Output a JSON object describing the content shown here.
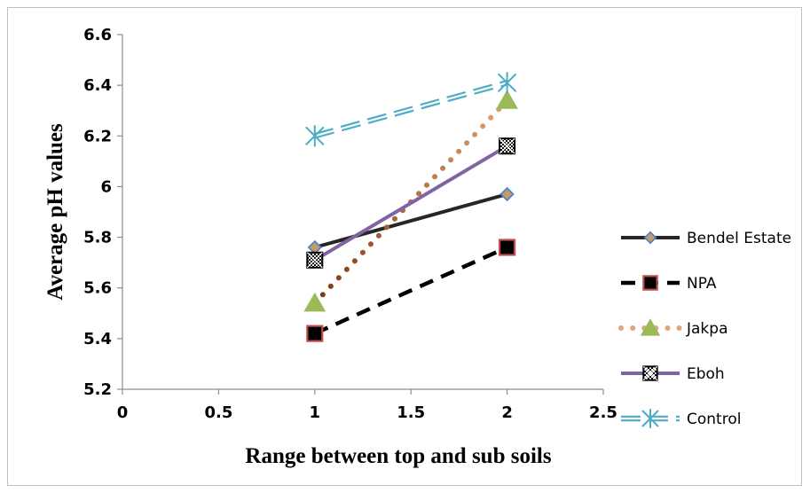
{
  "chart_data": {
    "type": "line",
    "title": "",
    "xlabel": "Range between top and sub soils",
    "ylabel": "Average pH values",
    "xlim": [
      0,
      2.5
    ],
    "ylim": [
      5.2,
      6.6
    ],
    "x_ticks": [
      "0",
      "0.5",
      "1",
      "1.5",
      "2",
      "2.5"
    ],
    "y_ticks": [
      "5.2",
      "5.4",
      "5.6",
      "5.8",
      "6",
      "6.2",
      "6.4",
      "6.6"
    ],
    "grid": false,
    "legend_position": "right",
    "series": [
      {
        "name": "Bendel Estate",
        "x": [
          1,
          2
        ],
        "y": [
          5.76,
          5.97
        ],
        "color": "#262626",
        "dash": "solid",
        "marker": "diamond",
        "marker_color": "#c39a6b",
        "marker_edge": "#4f81bd"
      },
      {
        "name": "NPA",
        "x": [
          1,
          2
        ],
        "y": [
          5.42,
          5.76
        ],
        "color": "#000000",
        "dash": "dash",
        "marker": "square",
        "marker_color": "#000000",
        "marker_edge": "#c0504d"
      },
      {
        "name": "Jakpa",
        "x": [
          1,
          2
        ],
        "y": [
          5.54,
          6.34
        ],
        "color": "#e3a477",
        "color_end_start": "#7a3a10",
        "dash": "dot",
        "marker": "triangle",
        "marker_color": "#9bbb59",
        "marker_edge": "#9bbb59"
      },
      {
        "name": "Eboh",
        "x": [
          1,
          2
        ],
        "y": [
          5.71,
          6.16
        ],
        "color": "#8064a2",
        "dash": "solid",
        "marker": "checker-square",
        "marker_color": "#000000",
        "marker_edge": "#000000"
      },
      {
        "name": "Control",
        "x": [
          1,
          2
        ],
        "y": [
          6.2,
          6.41
        ],
        "color": "#4bacc6",
        "dash": "double-dash",
        "marker": "asterisk",
        "marker_color": "#4bacc6",
        "marker_edge": "#4bacc6"
      }
    ]
  }
}
